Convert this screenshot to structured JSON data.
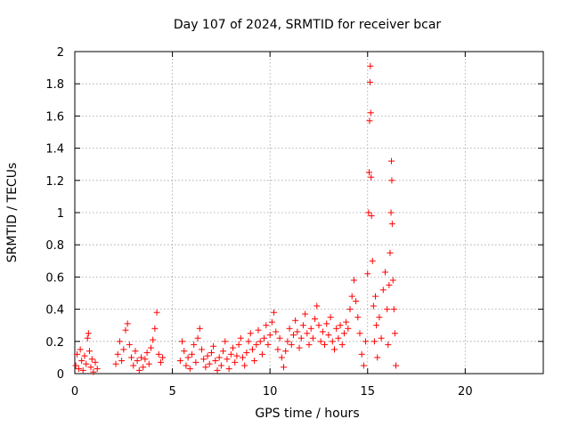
{
  "chart_data": {
    "type": "scatter",
    "title": "Day 107 of 2024, SRMTID for receiver bcar",
    "xlabel": "GPS time / hours",
    "ylabel": "SRMTID / TECUs",
    "xlim": [
      0,
      24
    ],
    "ylim": [
      0,
      2
    ],
    "xticks": [
      0,
      5,
      10,
      15,
      20
    ],
    "yticks": [
      0,
      0.2,
      0.4,
      0.6,
      0.8,
      1,
      1.2,
      1.4,
      1.6,
      1.8,
      2
    ],
    "xtick_labels": [
      "0",
      "5",
      "10",
      "15",
      "20"
    ],
    "ytick_labels": [
      "0",
      "0.2",
      "0.4",
      "0.6",
      "0.8",
      "1",
      "1.2",
      "1.4",
      "1.6",
      "1.8",
      "2"
    ],
    "grid": true,
    "marker": "+",
    "color": "#ff0000",
    "series": [
      {
        "name": "SRMTID",
        "points": [
          [
            0.05,
            0.05
          ],
          [
            0.12,
            0.12
          ],
          [
            0.2,
            0.03
          ],
          [
            0.28,
            0.15
          ],
          [
            0.35,
            0.08
          ],
          [
            0.42,
            0.02
          ],
          [
            0.5,
            0.11
          ],
          [
            0.58,
            0.06
          ],
          [
            0.65,
            0.22
          ],
          [
            0.7,
            0.25
          ],
          [
            0.75,
            0.14
          ],
          [
            0.82,
            0.04
          ],
          [
            0.88,
            0.09
          ],
          [
            0.95,
            0.01
          ],
          [
            1.05,
            0.07
          ],
          [
            1.15,
            0.03
          ],
          [
            2.1,
            0.06
          ],
          [
            2.2,
            0.12
          ],
          [
            2.3,
            0.2
          ],
          [
            2.4,
            0.08
          ],
          [
            2.5,
            0.15
          ],
          [
            2.6,
            0.27
          ],
          [
            2.7,
            0.31
          ],
          [
            2.8,
            0.18
          ],
          [
            2.9,
            0.1
          ],
          [
            3.0,
            0.05
          ],
          [
            3.1,
            0.14
          ],
          [
            3.2,
            0.08
          ],
          [
            3.3,
            0.02
          ],
          [
            3.4,
            0.1
          ],
          [
            3.5,
            0.04
          ],
          [
            3.6,
            0.09
          ],
          [
            3.7,
            0.13
          ],
          [
            3.8,
            0.06
          ],
          [
            3.9,
            0.16
          ],
          [
            4.0,
            0.21
          ],
          [
            4.1,
            0.28
          ],
          [
            4.2,
            0.38
          ],
          [
            4.3,
            0.12
          ],
          [
            4.4,
            0.07
          ],
          [
            4.5,
            0.1
          ],
          [
            5.4,
            0.08
          ],
          [
            5.5,
            0.2
          ],
          [
            5.6,
            0.14
          ],
          [
            5.7,
            0.05
          ],
          [
            5.8,
            0.1
          ],
          [
            5.9,
            0.03
          ],
          [
            6.0,
            0.12
          ],
          [
            6.1,
            0.18
          ],
          [
            6.2,
            0.07
          ],
          [
            6.3,
            0.22
          ],
          [
            6.4,
            0.28
          ],
          [
            6.5,
            0.15
          ],
          [
            6.6,
            0.09
          ],
          [
            6.7,
            0.04
          ],
          [
            6.8,
            0.11
          ],
          [
            6.9,
            0.06
          ],
          [
            7.0,
            0.13
          ],
          [
            7.1,
            0.17
          ],
          [
            7.2,
            0.08
          ],
          [
            7.3,
            0.02
          ],
          [
            7.4,
            0.1
          ],
          [
            7.5,
            0.05
          ],
          [
            7.6,
            0.14
          ],
          [
            7.7,
            0.2
          ],
          [
            7.8,
            0.09
          ],
          [
            7.9,
            0.03
          ],
          [
            8.0,
            0.12
          ],
          [
            8.1,
            0.16
          ],
          [
            8.2,
            0.07
          ],
          [
            8.3,
            0.11
          ],
          [
            8.4,
            0.18
          ],
          [
            8.5,
            0.22
          ],
          [
            8.6,
            0.1
          ],
          [
            8.7,
            0.05
          ],
          [
            8.8,
            0.13
          ],
          [
            8.9,
            0.2
          ],
          [
            9.0,
            0.25
          ],
          [
            9.1,
            0.15
          ],
          [
            9.2,
            0.08
          ],
          [
            9.3,
            0.18
          ],
          [
            9.4,
            0.27
          ],
          [
            9.5,
            0.2
          ],
          [
            9.6,
            0.12
          ],
          [
            9.7,
            0.22
          ],
          [
            9.8,
            0.3
          ],
          [
            9.9,
            0.18
          ],
          [
            10.0,
            0.24
          ],
          [
            10.1,
            0.32
          ],
          [
            10.2,
            0.38
          ],
          [
            10.3,
            0.26
          ],
          [
            10.4,
            0.15
          ],
          [
            10.5,
            0.22
          ],
          [
            10.6,
            0.1
          ],
          [
            10.7,
            0.04
          ],
          [
            10.8,
            0.14
          ],
          [
            10.9,
            0.2
          ],
          [
            11.0,
            0.28
          ],
          [
            11.1,
            0.18
          ],
          [
            11.2,
            0.24
          ],
          [
            11.3,
            0.33
          ],
          [
            11.4,
            0.26
          ],
          [
            11.5,
            0.16
          ],
          [
            11.6,
            0.22
          ],
          [
            11.7,
            0.3
          ],
          [
            11.8,
            0.37
          ],
          [
            11.9,
            0.25
          ],
          [
            12.0,
            0.18
          ],
          [
            12.1,
            0.28
          ],
          [
            12.2,
            0.22
          ],
          [
            12.3,
            0.34
          ],
          [
            12.4,
            0.42
          ],
          [
            12.5,
            0.3
          ],
          [
            12.6,
            0.2
          ],
          [
            12.7,
            0.26
          ],
          [
            12.8,
            0.18
          ],
          [
            12.9,
            0.31
          ],
          [
            13.0,
            0.24
          ],
          [
            13.1,
            0.35
          ],
          [
            13.2,
            0.2
          ],
          [
            13.3,
            0.15
          ],
          [
            13.4,
            0.28
          ],
          [
            13.5,
            0.22
          ],
          [
            13.6,
            0.3
          ],
          [
            13.7,
            0.18
          ],
          [
            13.8,
            0.25
          ],
          [
            13.9,
            0.32
          ],
          [
            14.0,
            0.28
          ],
          [
            14.1,
            0.4
          ],
          [
            14.2,
            0.48
          ],
          [
            14.3,
            0.58
          ],
          [
            14.4,
            0.45
          ],
          [
            14.5,
            0.35
          ],
          [
            14.6,
            0.25
          ],
          [
            14.7,
            0.12
          ],
          [
            14.8,
            0.05
          ],
          [
            14.9,
            0.2
          ],
          [
            15.0,
            0.62
          ],
          [
            15.05,
            1.0
          ],
          [
            15.08,
            1.25
          ],
          [
            15.1,
            1.57
          ],
          [
            15.12,
            1.81
          ],
          [
            15.14,
            1.91
          ],
          [
            15.16,
            1.62
          ],
          [
            15.18,
            1.22
          ],
          [
            15.2,
            0.98
          ],
          [
            15.25,
            0.7
          ],
          [
            15.3,
            0.42
          ],
          [
            15.35,
            0.2
          ],
          [
            15.4,
            0.48
          ],
          [
            15.45,
            0.3
          ],
          [
            15.5,
            0.1
          ],
          [
            15.6,
            0.35
          ],
          [
            15.7,
            0.22
          ],
          [
            15.8,
            0.52
          ],
          [
            15.9,
            0.63
          ],
          [
            16.0,
            0.4
          ],
          [
            16.05,
            0.18
          ],
          [
            16.1,
            0.55
          ],
          [
            16.15,
            0.75
          ],
          [
            16.2,
            1.0
          ],
          [
            16.22,
            1.32
          ],
          [
            16.24,
            1.2
          ],
          [
            16.26,
            0.93
          ],
          [
            16.3,
            0.58
          ],
          [
            16.35,
            0.4
          ],
          [
            16.4,
            0.25
          ],
          [
            16.45,
            0.05
          ]
        ]
      }
    ]
  }
}
